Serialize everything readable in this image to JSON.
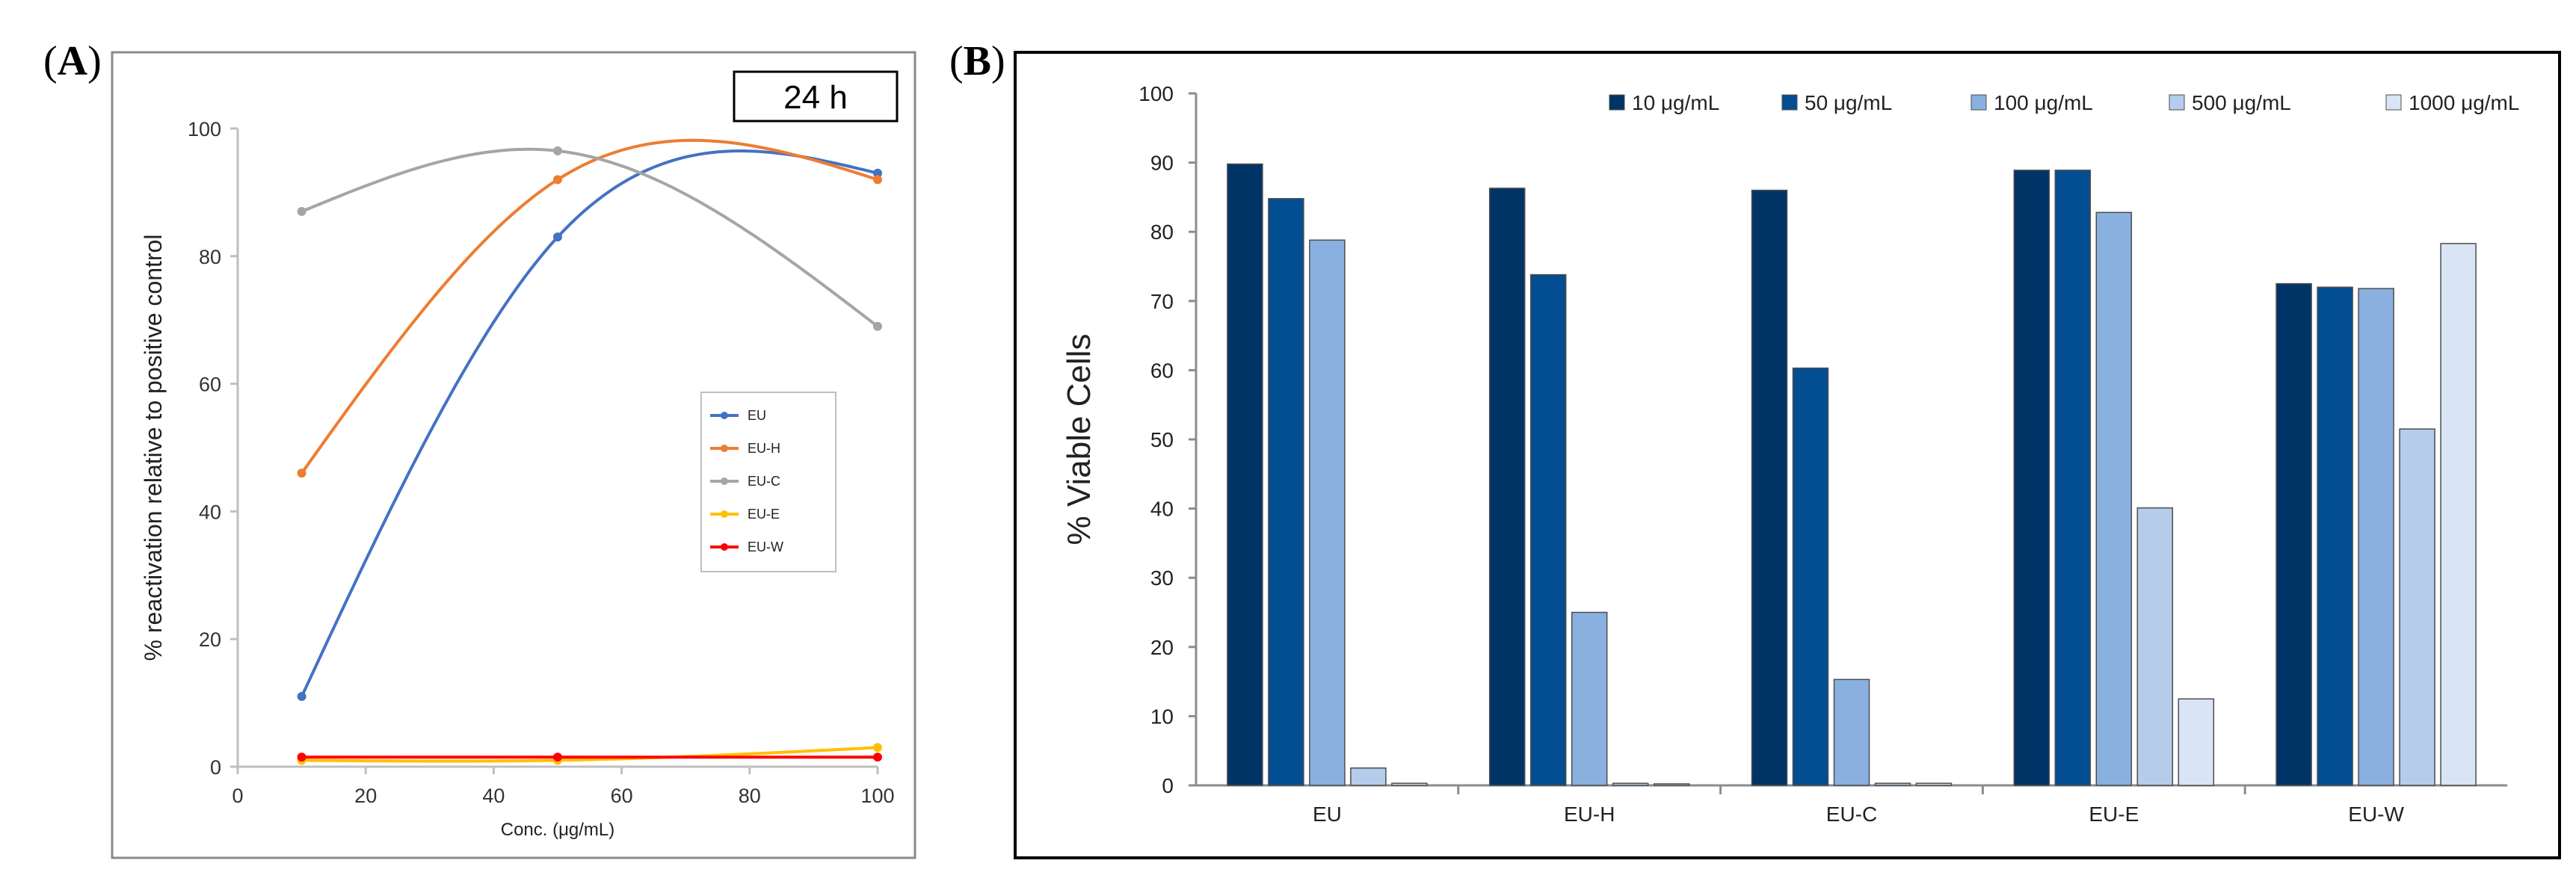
{
  "panel_a": {
    "label_open": "(",
    "label_letter": "A",
    "label_close": ")",
    "time_label": "24 h"
  },
  "panel_b": {
    "label_open": "(",
    "label_letter": "B",
    "label_close": ")"
  },
  "chart_data": [
    {
      "type": "line",
      "panel": "A",
      "xlabel": "Conc. (μg/mL)",
      "ylabel": "% reactivation relative to positive control",
      "xlim": [
        0,
        100
      ],
      "ylim": [
        0,
        100
      ],
      "xticks": [
        0,
        20,
        40,
        60,
        80,
        100
      ],
      "yticks": [
        0,
        20,
        40,
        60,
        80,
        100
      ],
      "x": [
        10,
        50,
        100
      ],
      "smooth": true,
      "grid": false,
      "legend_position": "right",
      "series": [
        {
          "name": "EU",
          "color": "#4472C4",
          "values": [
            11,
            83,
            93
          ]
        },
        {
          "name": "EU-H",
          "color": "#ED7D31",
          "values": [
            46,
            92,
            92
          ]
        },
        {
          "name": "EU-C",
          "color": "#A5A5A5",
          "values": [
            87,
            96.5,
            69
          ]
        },
        {
          "name": "EU-E",
          "color": "#FFC000",
          "values": [
            1,
            1,
            3
          ]
        },
        {
          "name": "EU-W",
          "color": "#FF0000",
          "values": [
            1.5,
            1.5,
            1.5
          ]
        }
      ]
    },
    {
      "type": "bar",
      "panel": "B",
      "ylabel": "% Viable Cells",
      "ylim": [
        0,
        100
      ],
      "yticks": [
        0,
        10,
        20,
        30,
        40,
        50,
        60,
        70,
        80,
        90,
        100
      ],
      "categories": [
        "EU",
        "EU-H",
        "EU-C",
        "EU-E",
        "EU-W"
      ],
      "grid": false,
      "legend_position": "top-right",
      "series": [
        {
          "name": "10 μg/mL",
          "color": "#003366",
          "values": [
            89.8,
            86.3,
            86.0,
            88.9,
            72.5
          ]
        },
        {
          "name": "50 μg/mL",
          "color": "#034E93",
          "values": [
            84.8,
            73.8,
            60.3,
            88.9,
            72.0
          ]
        },
        {
          "name": "100 μg/mL",
          "color": "#8AB0E0",
          "values": [
            78.8,
            25.0,
            15.3,
            82.8,
            71.8
          ]
        },
        {
          "name": "500 μg/mL",
          "color": "#B5CDEB",
          "values": [
            2.5,
            0.3,
            0.3,
            40.1,
            51.5
          ]
        },
        {
          "name": "1000 μg/mL",
          "color": "#D9E5F5",
          "values": [
            0.3,
            0,
            0.3,
            12.5,
            78.3
          ]
        }
      ]
    }
  ]
}
